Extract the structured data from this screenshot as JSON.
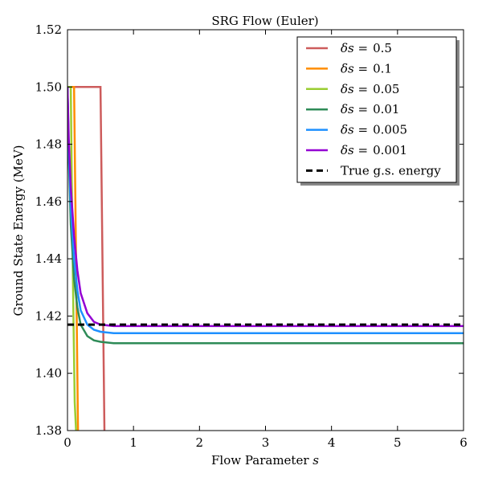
{
  "chart_data": {
    "type": "line",
    "title": "SRG Flow (Euler)",
    "xlabel_text": "Flow Parameter",
    "xlabel_var": "s",
    "ylabel": "Ground State Energy (MeV)",
    "xlim": [
      0,
      6
    ],
    "ylim": [
      1.38,
      1.52
    ],
    "xticks": [
      0,
      1,
      2,
      3,
      4,
      5,
      6
    ],
    "yticks": [
      1.38,
      1.4,
      1.42,
      1.44,
      1.46,
      1.48,
      1.5,
      1.52
    ],
    "xtick_labels": [
      "0",
      "1",
      "2",
      "3",
      "4",
      "5",
      "6"
    ],
    "ytick_labels": [
      "1.38",
      "1.40",
      "1.42",
      "1.44",
      "1.46",
      "1.48",
      "1.50",
      "1.52"
    ],
    "grid": false,
    "legend_position": "top-right",
    "legend_prefix": "δs =",
    "series": [
      {
        "name": "δs = 0.5",
        "label_value": "0.5",
        "color": "#cd5c5c",
        "style": "solid",
        "points": [
          [
            0,
            1.5
          ],
          [
            0.5,
            1.5
          ],
          [
            0.56,
            1.38
          ]
        ]
      },
      {
        "name": "δs = 0.1",
        "label_value": "0.1",
        "color": "#ff8c00",
        "style": "solid",
        "points": [
          [
            0,
            1.5
          ],
          [
            0.1,
            1.5
          ],
          [
            0.16,
            1.38
          ]
        ]
      },
      {
        "name": "δs = 0.05",
        "label_value": "0.05",
        "color": "#9acd32",
        "style": "solid",
        "points": [
          [
            0,
            1.5
          ],
          [
            0.05,
            1.5
          ],
          [
            0.07,
            1.455
          ],
          [
            0.09,
            1.42
          ],
          [
            0.11,
            1.39
          ],
          [
            0.13,
            1.38
          ]
        ]
      },
      {
        "name": "δs = 0.01",
        "label_value": "0.01",
        "color": "#2e8b57",
        "style": "solid",
        "points": [
          [
            0,
            1.5
          ],
          [
            0.02,
            1.475
          ],
          [
            0.05,
            1.452
          ],
          [
            0.1,
            1.433
          ],
          [
            0.15,
            1.423
          ],
          [
            0.2,
            1.417
          ],
          [
            0.3,
            1.413
          ],
          [
            0.4,
            1.4115
          ],
          [
            0.5,
            1.411
          ],
          [
            0.7,
            1.4105
          ],
          [
            1.0,
            1.4105
          ],
          [
            6,
            1.4105
          ]
        ]
      },
      {
        "name": "δs = 0.005",
        "label_value": "0.005",
        "color": "#1e90ff",
        "style": "solid",
        "points": [
          [
            0,
            1.5
          ],
          [
            0.02,
            1.478
          ],
          [
            0.05,
            1.458
          ],
          [
            0.1,
            1.44
          ],
          [
            0.15,
            1.429
          ],
          [
            0.2,
            1.422
          ],
          [
            0.3,
            1.417
          ],
          [
            0.4,
            1.4152
          ],
          [
            0.5,
            1.4145
          ],
          [
            0.7,
            1.414
          ],
          [
            1.0,
            1.414
          ],
          [
            6,
            1.414
          ]
        ]
      },
      {
        "name": "δs = 0.001",
        "label_value": "0.001",
        "color": "#9400d3",
        "style": "solid",
        "points": [
          [
            0,
            1.5
          ],
          [
            0.02,
            1.482
          ],
          [
            0.05,
            1.465
          ],
          [
            0.1,
            1.448
          ],
          [
            0.15,
            1.436
          ],
          [
            0.2,
            1.428
          ],
          [
            0.3,
            1.421
          ],
          [
            0.4,
            1.418
          ],
          [
            0.5,
            1.417
          ],
          [
            0.7,
            1.4165
          ],
          [
            1.0,
            1.4165
          ],
          [
            6,
            1.4165
          ]
        ]
      },
      {
        "name": "True g.s. energy",
        "color": "#000000",
        "style": "dashed",
        "points": [
          [
            0,
            1.417
          ],
          [
            6,
            1.417
          ]
        ]
      }
    ]
  }
}
